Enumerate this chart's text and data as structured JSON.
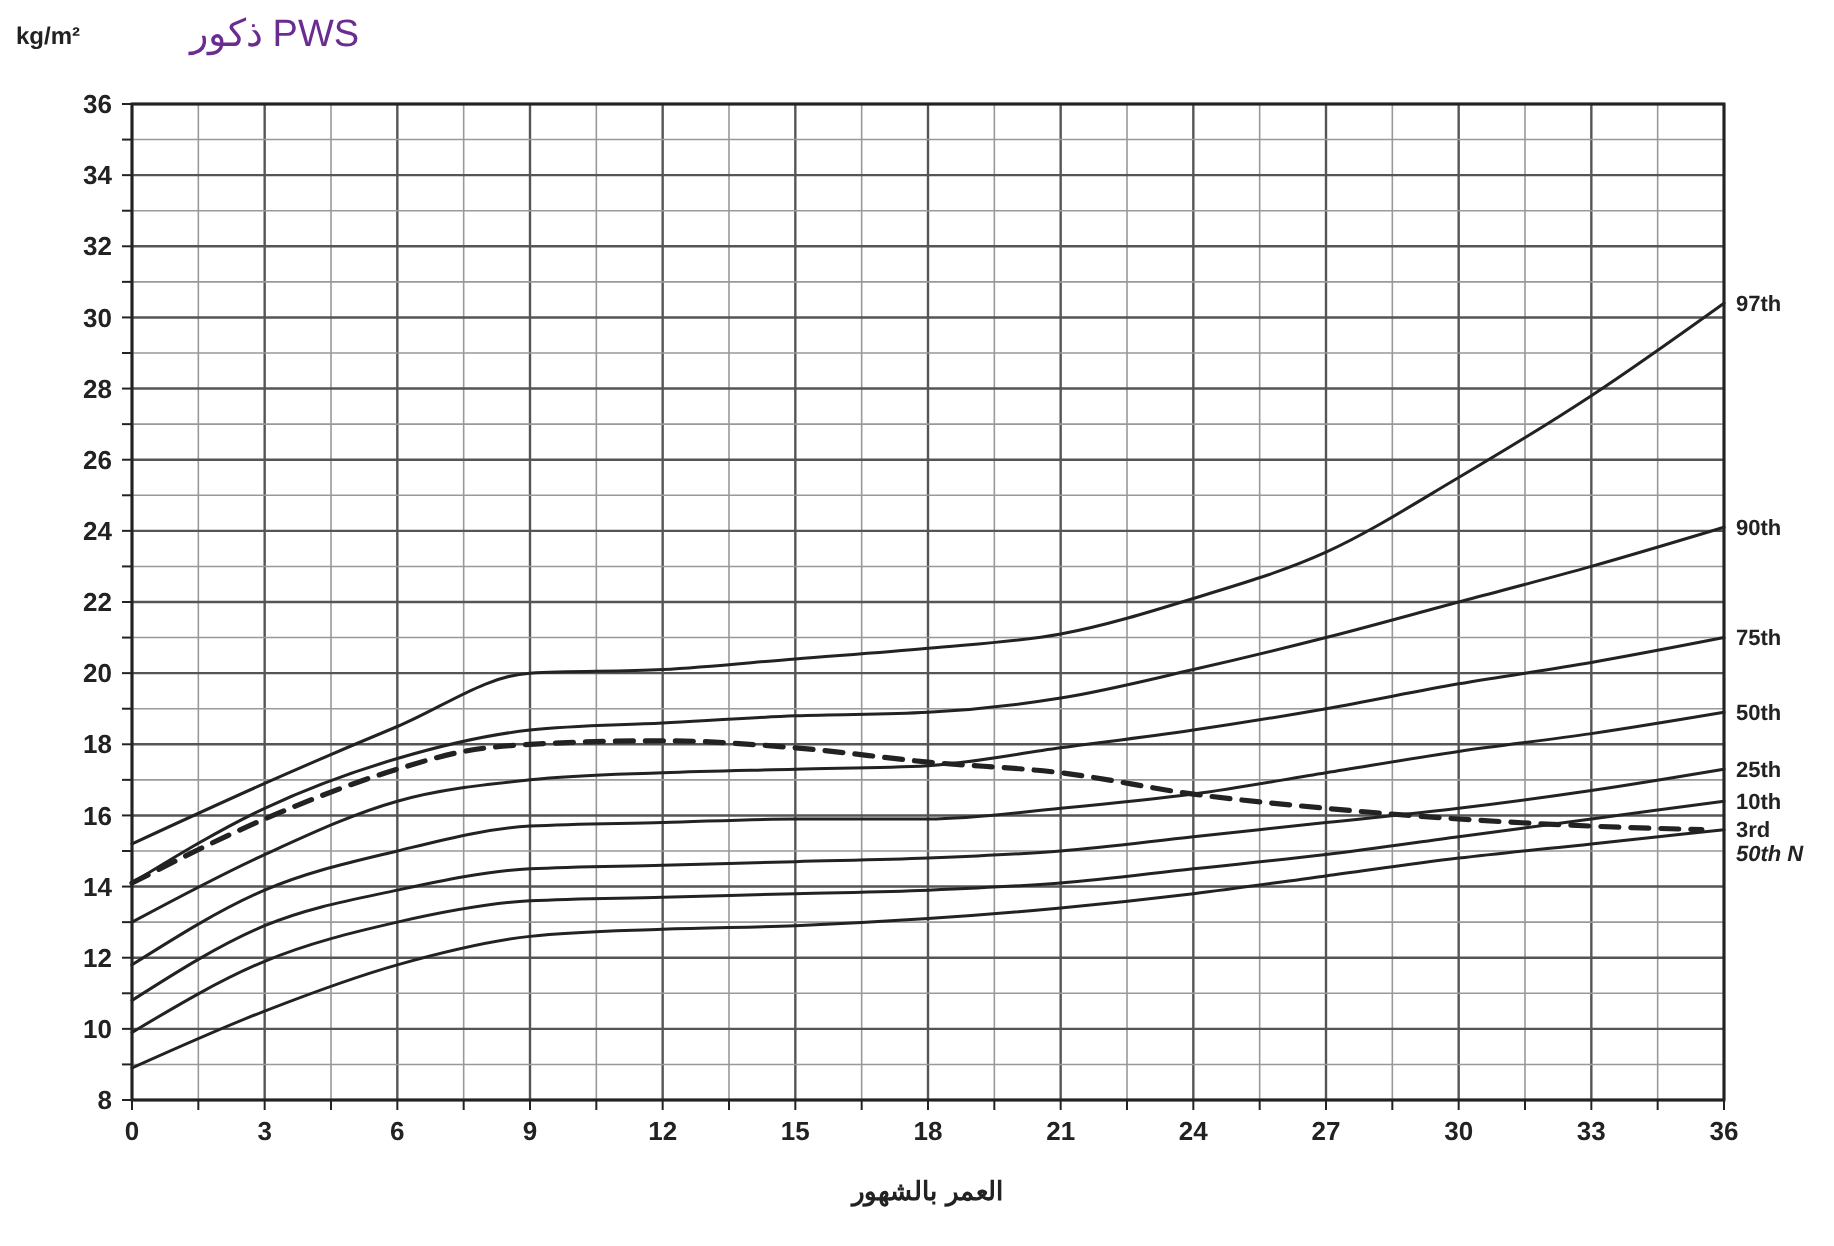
{
  "chart_data": {
    "type": "line",
    "title": "ذكور PWS",
    "ylabel": "kg/m²",
    "xlabel": "العمر بالشهور",
    "xlim": [
      0,
      36
    ],
    "ylim": [
      8,
      36
    ],
    "xticks": [
      0,
      {
        "value": 1.5,
        "label": null
      },
      3,
      {
        "value": 4.5,
        "label": null
      },
      6,
      {
        "value": 7.5,
        "label": null
      },
      9,
      {
        "value": 10.5,
        "label": null
      },
      12,
      {
        "value": 13.5,
        "label": null
      },
      15,
      {
        "value": 16.5,
        "label": null
      },
      18,
      {
        "value": 19.5,
        "label": null
      },
      21,
      {
        "value": 22.5,
        "label": null
      },
      24,
      {
        "value": 25.5,
        "label": null
      },
      27,
      {
        "value": 28.5,
        "label": null
      },
      30,
      {
        "value": 31.5,
        "label": null
      },
      33,
      {
        "value": 34.5,
        "label": null
      },
      36
    ],
    "yticks": [
      8,
      {
        "value": 9,
        "label": null
      },
      10,
      {
        "value": 11,
        "label": null
      },
      12,
      {
        "value": 13,
        "label": null
      },
      14,
      {
        "value": 15,
        "label": null
      },
      16,
      {
        "value": 17,
        "label": null
      },
      18,
      {
        "value": 19,
        "label": null
      },
      20,
      {
        "value": 21,
        "label": null
      },
      22,
      {
        "value": 23,
        "label": null
      },
      24,
      {
        "value": 25,
        "label": null
      },
      26,
      {
        "value": 27,
        "label": null
      },
      28,
      {
        "value": 29,
        "label": null
      },
      30,
      {
        "value": 31,
        "label": null
      },
      32,
      {
        "value": 33,
        "label": null
      },
      34,
      {
        "value": 35,
        "label": null
      },
      36
    ],
    "grid": true,
    "marker": "none",
    "x": [
      0,
      3,
      6,
      9,
      12,
      15,
      18,
      21,
      24,
      27,
      30,
      33,
      36
    ],
    "series": [
      {
        "name": "97th",
        "color": "#222222",
        "line_style": "solid",
        "values": [
          15.2,
          16.9,
          18.5,
          20.0,
          20.1,
          20.4,
          20.7,
          21.1,
          22.1,
          23.4,
          25.5,
          27.8,
          30.4
        ]
      },
      {
        "name": "90th",
        "color": "#222222",
        "line_style": "solid",
        "values": [
          14.1,
          16.2,
          17.6,
          18.4,
          18.6,
          18.8,
          18.9,
          19.3,
          20.1,
          21.0,
          22.0,
          23.0,
          24.1
        ]
      },
      {
        "name": "75th",
        "color": "#222222",
        "line_style": "solid",
        "values": [
          13.0,
          14.9,
          16.4,
          17.0,
          17.2,
          17.3,
          17.4,
          17.9,
          18.4,
          19.0,
          19.7,
          20.3,
          21.0
        ]
      },
      {
        "name": "50th",
        "color": "#222222",
        "line_style": "solid",
        "values": [
          11.8,
          13.9,
          15.0,
          15.7,
          15.8,
          15.9,
          15.9,
          16.2,
          16.6,
          17.2,
          17.8,
          18.3,
          18.9
        ]
      },
      {
        "name": "25th",
        "color": "#222222",
        "line_style": "solid",
        "values": [
          10.8,
          12.9,
          13.9,
          14.5,
          14.6,
          14.7,
          14.8,
          15.0,
          15.4,
          15.8,
          16.2,
          16.7,
          17.3
        ]
      },
      {
        "name": "10th",
        "color": "#222222",
        "line_style": "solid",
        "values": [
          9.9,
          11.9,
          13.0,
          13.6,
          13.7,
          13.8,
          13.9,
          14.1,
          14.5,
          14.9,
          15.4,
          15.9,
          16.4
        ]
      },
      {
        "name": "3rd",
        "color": "#222222",
        "line_style": "solid",
        "values": [
          8.9,
          10.5,
          11.8,
          12.6,
          12.8,
          12.9,
          13.1,
          13.4,
          13.8,
          14.3,
          14.8,
          15.2,
          15.6
        ]
      },
      {
        "name": "50th N",
        "color": "#222222",
        "line_style": "dashed",
        "x": [
          0,
          3,
          6,
          7.5,
          9,
          12,
          15,
          18,
          21,
          24,
          27,
          30,
          33,
          35.5
        ],
        "values": [
          14.1,
          15.9,
          17.3,
          17.8,
          18.0,
          18.1,
          17.9,
          17.5,
          17.2,
          16.6,
          16.2,
          15.9,
          15.7,
          15.6
        ]
      }
    ]
  }
}
